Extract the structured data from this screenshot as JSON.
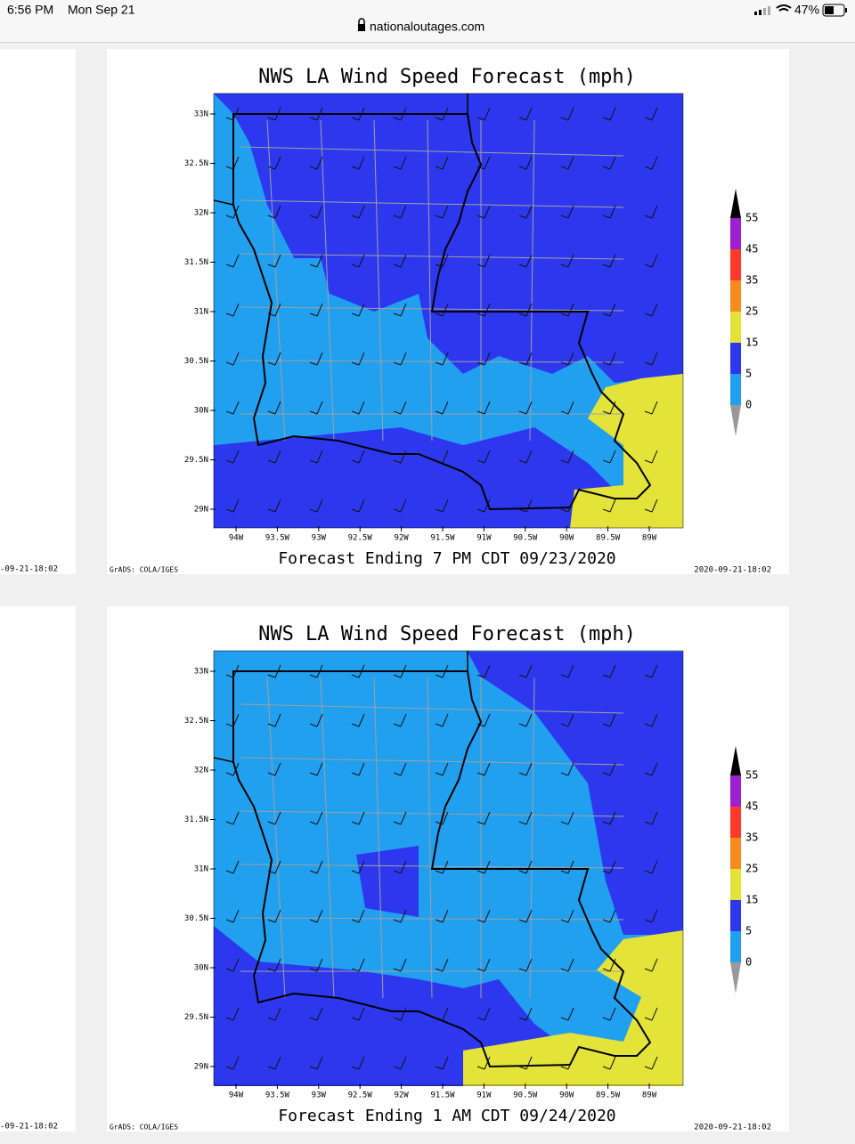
{
  "status_bar": {
    "time": "6:56 PM",
    "date": "Mon Sep 21",
    "battery": "47%"
  },
  "address_bar": {
    "url": "nationaloutages.com"
  },
  "left_edge_stamps": [
    "-09-21-18:02",
    "-09-21-18:02"
  ],
  "panels": [
    {
      "title": "NWS LA Wind Speed Forecast (mph)",
      "latitude_labels": [
        "33N",
        "32.5N",
        "32N",
        "31.5N",
        "31N",
        "30.5N",
        "30N",
        "29.5N",
        "29N"
      ],
      "longitude_labels": [
        "94W",
        "93.5W",
        "93W",
        "92.5W",
        "92W",
        "91.5W",
        "91W",
        "90.5W",
        "90W",
        "89.5W",
        "89W"
      ],
      "colorbar_labels": [
        "55",
        "45",
        "35",
        "25",
        "15",
        "5",
        "0"
      ],
      "caption": "Forecast Ending 7 PM CDT 09/23/2020",
      "credit": "GrADS: COLA/IGES",
      "timestamp": "2020-09-21-18:02"
    },
    {
      "title": "NWS LA Wind Speed Forecast (mph)",
      "latitude_labels": [
        "33N",
        "32.5N",
        "32N",
        "31.5N",
        "31N",
        "30.5N",
        "30N",
        "29.5N",
        "29N"
      ],
      "longitude_labels": [
        "94W",
        "93.5W",
        "93W",
        "92.5W",
        "92W",
        "91.5W",
        "91W",
        "90.5W",
        "90W",
        "89.5W",
        "89W"
      ],
      "colorbar_labels": [
        "55",
        "45",
        "35",
        "25",
        "15",
        "5",
        "0"
      ],
      "caption": "Forecast Ending 1 AM CDT 09/24/2020",
      "credit": "GrADS: COLA/IGES",
      "timestamp": "2020-09-21-18:02"
    }
  ]
}
